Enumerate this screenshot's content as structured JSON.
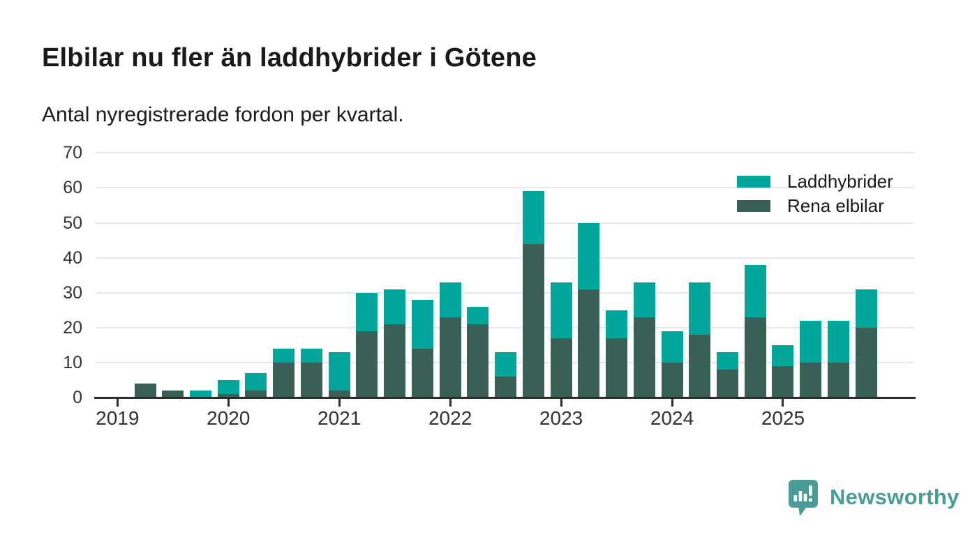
{
  "title": "Elbilar nu fler än laddhybrider i Götene",
  "subtitle": "Antal nyregistrerade fordon per kvartal.",
  "legend": [
    {
      "label": "Laddhybrider",
      "color": "#02a69b"
    },
    {
      "label": "Rena elbilar",
      "color": "#3a6157"
    }
  ],
  "branding": {
    "name": "Newsworthy",
    "icon": "newsworthy-bubble-chart-icon",
    "color": "#4a9d96"
  },
  "chart_data": {
    "type": "bar",
    "stacked": true,
    "title": "Elbilar nu fler än laddhybrider i Götene",
    "subtitle": "Antal nyregistrerade fordon per kvartal.",
    "x": [
      "2019 Q1",
      "2019 Q2",
      "2019 Q3",
      "2019 Q4",
      "2020 Q1",
      "2020 Q2",
      "2020 Q3",
      "2020 Q4",
      "2021 Q1",
      "2021 Q2",
      "2021 Q3",
      "2021 Q4",
      "2022 Q1",
      "2022 Q2",
      "2022 Q3",
      "2022 Q4",
      "2023 Q1",
      "2023 Q2",
      "2023 Q3",
      "2023 Q4",
      "2024 Q1",
      "2024 Q2",
      "2024 Q3",
      "2024 Q4",
      "2025 Q1",
      "2025 Q2",
      "2025 Q3",
      "2025 Q4"
    ],
    "series": [
      {
        "name": "Rena elbilar",
        "color": "#3a6157",
        "stack_position": "bottom",
        "values": [
          0,
          4,
          2,
          0,
          1,
          2,
          10,
          10,
          2,
          19,
          21,
          14,
          23,
          21,
          6,
          44,
          17,
          31,
          17,
          23,
          10,
          18,
          8,
          23,
          9,
          10,
          10,
          20
        ]
      },
      {
        "name": "Laddhybrider",
        "color": "#02a69b",
        "stack_position": "top",
        "values": [
          0,
          0,
          0,
          2,
          4,
          5,
          4,
          4,
          11,
          11,
          10,
          14,
          10,
          5,
          7,
          15,
          16,
          19,
          8,
          10,
          9,
          15,
          5,
          15,
          6,
          12,
          12,
          11
        ]
      }
    ],
    "totals": [
      0,
      4,
      2,
      2,
      5,
      7,
      14,
      14,
      13,
      30,
      31,
      28,
      33,
      26,
      13,
      59,
      33,
      50,
      25,
      33,
      19,
      33,
      13,
      38,
      15,
      22,
      22,
      31
    ],
    "ylim": [
      0,
      70
    ],
    "yticks": [
      0,
      10,
      20,
      30,
      40,
      50,
      60,
      70
    ],
    "xtick_labels": [
      "2019",
      "2020",
      "2021",
      "2022",
      "2023",
      "2024",
      "2025"
    ],
    "grid": "horizontal",
    "legend_position": "top-right"
  }
}
